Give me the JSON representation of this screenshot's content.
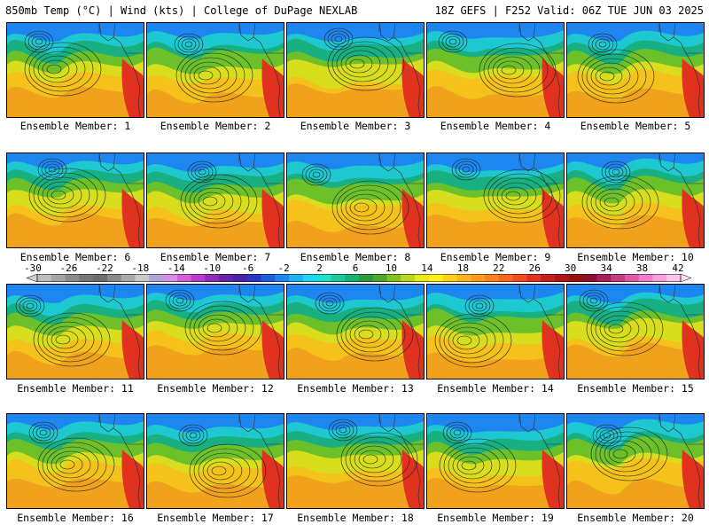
{
  "header": {
    "left_title": "850mb Temp (°C) | Wind (kts) | College of DuPage NEXLAB",
    "right_title": "18Z GEFS | F252 Valid: 06Z TUE JUN 03 2025"
  },
  "members": [
    {
      "label": "Ensemble Member: 1"
    },
    {
      "label": "Ensemble Member: 2"
    },
    {
      "label": "Ensemble Member: 3"
    },
    {
      "label": "Ensemble Member: 4"
    },
    {
      "label": "Ensemble Member: 5"
    },
    {
      "label": "Ensemble Member: 6"
    },
    {
      "label": "Ensemble Member: 7"
    },
    {
      "label": "Ensemble Member: 8"
    },
    {
      "label": "Ensemble Member: 9"
    },
    {
      "label": "Ensemble Member: 10"
    },
    {
      "label": "Ensemble Member: 11"
    },
    {
      "label": "Ensemble Member: 12"
    },
    {
      "label": "Ensemble Member: 13"
    },
    {
      "label": "Ensemble Member: 14"
    },
    {
      "label": "Ensemble Member: 15"
    },
    {
      "label": "Ensemble Member: 16"
    },
    {
      "label": "Ensemble Member: 17"
    },
    {
      "label": "Ensemble Member: 18"
    },
    {
      "label": "Ensemble Member: 19"
    },
    {
      "label": "Ensemble Member: 20"
    }
  ],
  "colorbar": {
    "ticks": [
      "-30",
      "-26",
      "-22",
      "-18",
      "-14",
      "-10",
      "-6",
      "-2",
      "2",
      "6",
      "10",
      "14",
      "18",
      "22",
      "26",
      "30",
      "34",
      "38",
      "42"
    ],
    "colors": [
      "#bdbdbd",
      "#a5a5a5",
      "#8c8c8c",
      "#777777",
      "#6e6e6e",
      "#8a8a8a",
      "#a9a9a9",
      "#c9c9c9",
      "#b3a1d8",
      "#d98ee6",
      "#d25fd6",
      "#b93cc8",
      "#8e2ab4",
      "#6a22a6",
      "#4b22a8",
      "#2a38c4",
      "#1e5ce0",
      "#1e86f0",
      "#1eb2f5",
      "#1ed6f0",
      "#1ee0c8",
      "#1ec89a",
      "#18b06e",
      "#2a9a3c",
      "#4ea828",
      "#84c01e",
      "#bcd81e",
      "#e8ea1e",
      "#fff01e",
      "#ffd21e",
      "#ffb41e",
      "#ff9a1e",
      "#ff801e",
      "#ff641e",
      "#f44a1e",
      "#e0321e",
      "#c81e1e",
      "#b01414",
      "#981010",
      "#8c1030",
      "#a81e5a",
      "#c43c82",
      "#dc5aa8",
      "#ee7cc8",
      "#f8a0dc",
      "#fcc4ee"
    ]
  }
}
